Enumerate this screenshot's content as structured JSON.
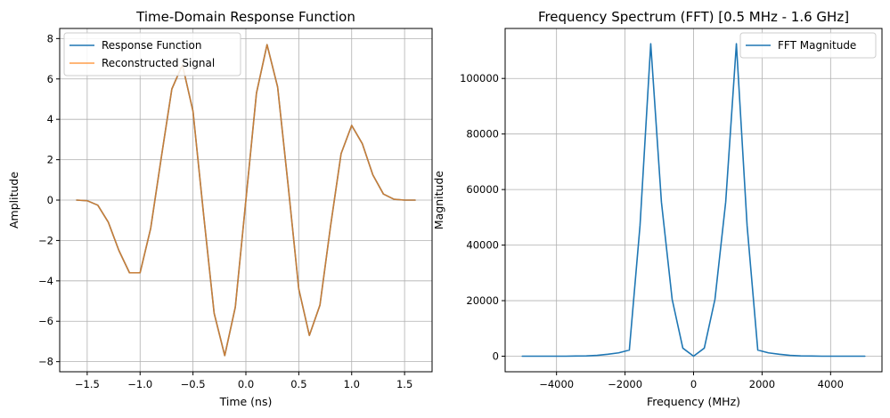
{
  "chart_data": [
    {
      "type": "line",
      "title": "Time-Domain Response Function",
      "xlabel": "Time (ns)",
      "ylabel": "Amplitude",
      "xlim": [
        -1.76,
        1.76
      ],
      "ylim": [
        -8.5,
        8.5
      ],
      "xticks": [
        -1.5,
        -1.0,
        -0.5,
        0.0,
        0.5,
        1.0,
        1.5
      ],
      "xtick_labels": [
        "−1.5",
        "−1.0",
        "−0.5",
        "0.0",
        "0.5",
        "1.0",
        "1.5"
      ],
      "yticks": [
        -8,
        -6,
        -4,
        -2,
        0,
        2,
        4,
        6,
        8
      ],
      "ytick_labels": [
        "−8",
        "−6",
        "−4",
        "−2",
        "0",
        "2",
        "4",
        "6",
        "8"
      ],
      "grid": true,
      "legend_position": "top-left",
      "series": [
        {
          "name": "Response Function",
          "color": "#1f77b4",
          "x": [
            -1.6,
            -1.5,
            -1.4,
            -1.3,
            -1.2,
            -1.1,
            -1.0,
            -0.9,
            -0.8,
            -0.7,
            -0.6,
            -0.5,
            -0.4,
            -0.3,
            -0.2,
            -0.1,
            0.0,
            0.1,
            0.2,
            0.3,
            0.4,
            0.5,
            0.6,
            0.7,
            0.8,
            0.9,
            1.0,
            1.1,
            1.2,
            1.3,
            1.4,
            1.5,
            1.6
          ],
          "y": [
            0.0,
            -0.03,
            -0.25,
            -1.1,
            -2.5,
            -3.6,
            -3.6,
            -1.4,
            2.1,
            5.5,
            6.7,
            4.4,
            -0.7,
            -5.6,
            -7.7,
            -5.3,
            0.0,
            5.3,
            7.7,
            5.6,
            0.7,
            -4.4,
            -6.7,
            -5.2,
            -1.3,
            2.3,
            3.7,
            2.8,
            1.25,
            0.3,
            0.04,
            0.0,
            0.0
          ]
        },
        {
          "name": "Reconstructed Signal",
          "color": "#ff7f0e",
          "x": [
            -1.6,
            -1.5,
            -1.4,
            -1.3,
            -1.2,
            -1.1,
            -1.0,
            -0.9,
            -0.8,
            -0.7,
            -0.6,
            -0.5,
            -0.4,
            -0.3,
            -0.2,
            -0.1,
            0.0,
            0.1,
            0.2,
            0.3,
            0.4,
            0.5,
            0.6,
            0.7,
            0.8,
            0.9,
            1.0,
            1.1,
            1.2,
            1.3,
            1.4,
            1.5,
            1.6
          ],
          "y": [
            0.0,
            -0.03,
            -0.25,
            -1.1,
            -2.5,
            -3.6,
            -3.6,
            -1.4,
            2.1,
            5.5,
            6.7,
            4.4,
            -0.7,
            -5.6,
            -7.7,
            -5.3,
            0.0,
            5.3,
            7.7,
            5.6,
            0.7,
            -4.4,
            -6.7,
            -5.2,
            -1.3,
            2.3,
            3.7,
            2.8,
            1.25,
            0.3,
            0.04,
            0.0,
            0.0
          ]
        }
      ]
    },
    {
      "type": "line",
      "title": "Frequency Spectrum (FFT) [0.5 MHz - 1.6 GHz]",
      "xlabel": "Frequency (MHz)",
      "ylabel": "Magnitude",
      "xlim": [
        -5500,
        5500
      ],
      "ylim": [
        -5600,
        118000
      ],
      "xticks": [
        -4000,
        -2000,
        0,
        2000,
        4000
      ],
      "xtick_labels": [
        "−4000",
        "−2000",
        "0",
        "2000",
        "4000"
      ],
      "yticks": [
        0,
        20000,
        40000,
        60000,
        80000,
        100000
      ],
      "ytick_labels": [
        "0",
        "20000",
        "40000",
        "60000",
        "80000",
        "100000"
      ],
      "grid": true,
      "legend_position": "top-right",
      "series": [
        {
          "name": "FFT Magnitude",
          "color": "#1f77b4",
          "x": [
            -5000,
            -4688,
            -4375,
            -4063,
            -3750,
            -3438,
            -3125,
            -2813,
            -2500,
            -2188,
            -1875,
            -1563,
            -1250,
            -938,
            -625,
            -313,
            0,
            313,
            625,
            938,
            1250,
            1563,
            1875,
            2188,
            2500,
            2813,
            3125,
            3438,
            3750,
            4063,
            4375,
            4688,
            5000
          ],
          "y": [
            0,
            0,
            0,
            0,
            0,
            50,
            100,
            300,
            700,
            1200,
            2200,
            47000,
            112500,
            55500,
            20500,
            2900,
            0,
            2900,
            20500,
            55500,
            112500,
            47000,
            2200,
            1200,
            700,
            300,
            100,
            50,
            0,
            0,
            0,
            0,
            0
          ]
        }
      ]
    }
  ]
}
